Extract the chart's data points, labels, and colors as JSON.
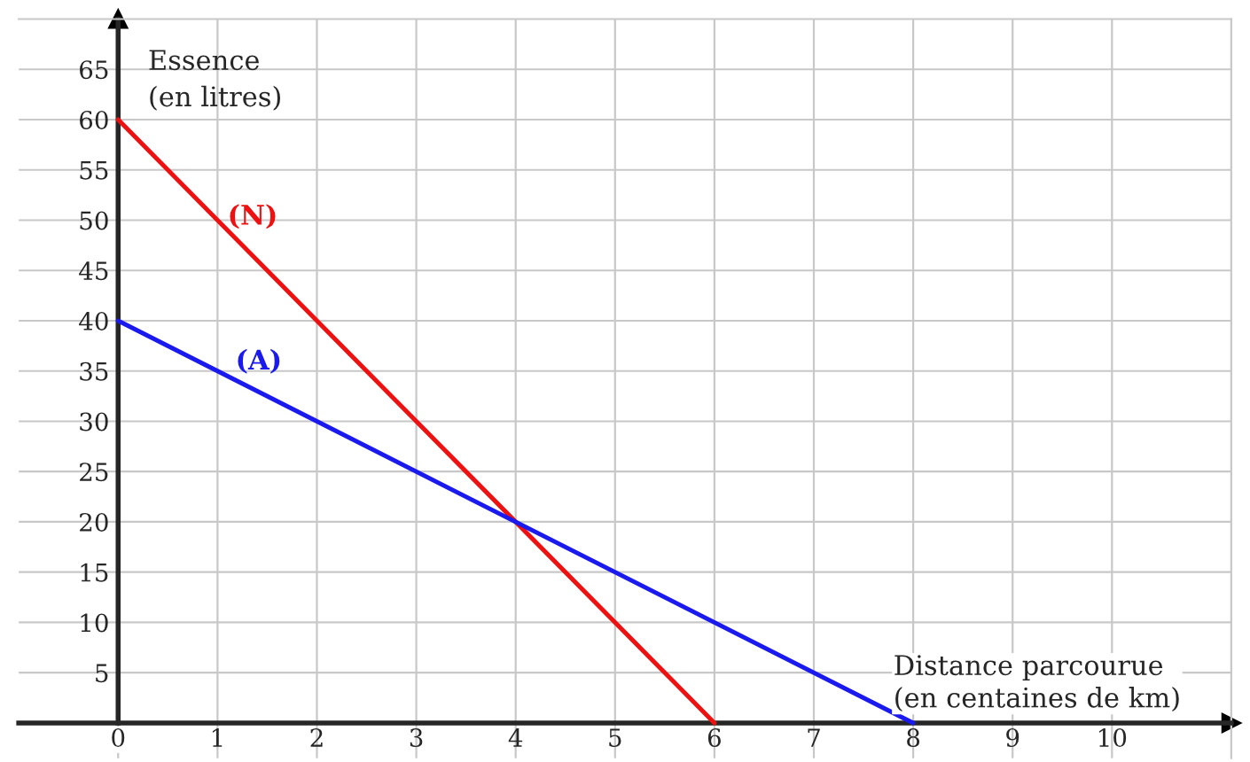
{
  "chart_data": {
    "type": "line",
    "xlabel": "Distance parcourue\n(en centaines de km)",
    "ylabel": "Essence\n(en litres)",
    "series": [
      {
        "name": "(N)",
        "color": "#ee1111",
        "x": [
          0,
          6
        ],
        "values": [
          60,
          0
        ]
      },
      {
        "name": "(A)",
        "color": "#1a1aee",
        "x": [
          0,
          8
        ],
        "values": [
          40,
          0
        ]
      }
    ],
    "xlim": [
      -1,
      11.2
    ],
    "ylim": [
      -3.5,
      70
    ],
    "xticks": [
      {
        "value": 0,
        "label": "0"
      },
      1,
      2,
      3,
      4,
      5,
      6,
      7,
      8,
      9,
      10
    ],
    "yticks": [
      5,
      10,
      15,
      20,
      25,
      30,
      35,
      40,
      45,
      50,
      55,
      60,
      65
    ],
    "grid": true,
    "legend": false,
    "marker": "none",
    "line_style": "solid"
  }
}
